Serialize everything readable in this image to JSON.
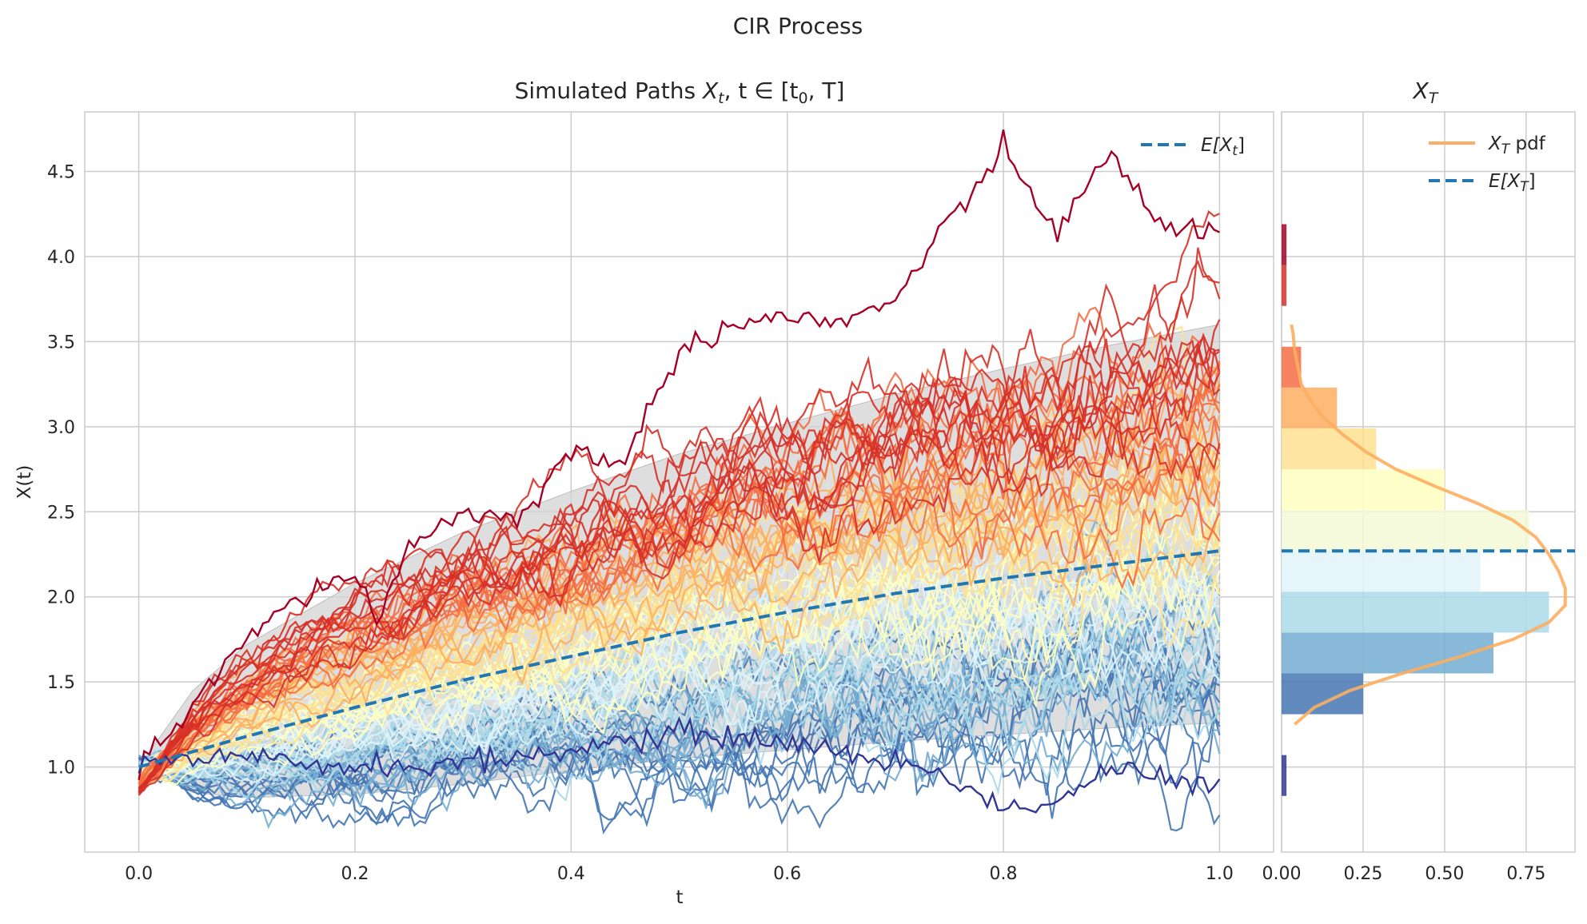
{
  "figure": {
    "suptitle": "CIR Process"
  },
  "colors": {
    "background": "#ffffff",
    "grid": "#cccccc",
    "spine": "#cccccc",
    "band": "#d3d3d3",
    "mean_line": "#1f77b4",
    "pdf_line": "#fdae61",
    "path_colormap": [
      "#313695",
      "#4575b4",
      "#74add1",
      "#abd9e9",
      "#e0f3f8",
      "#ffffbf",
      "#fee090",
      "#fdae61",
      "#f46d43",
      "#d73027",
      "#a50026"
    ]
  },
  "chart_data": [
    {
      "type": "line",
      "title_text": "Simulated Paths ",
      "title_math": "X",
      "title_math_sub": "t",
      "title_math_rest": ", t ∈ [t",
      "title_math_sub2": "0",
      "title_math_end": ", T]",
      "xlabel": "t",
      "ylabel": "X(t)",
      "xlim": [
        -0.05,
        1.05
      ],
      "ylim": [
        0.5,
        4.85
      ],
      "xticks": [
        0.0,
        0.2,
        0.4,
        0.6,
        0.8,
        1.0
      ],
      "xtick_labels": [
        "0.0",
        "0.2",
        "0.4",
        "0.6",
        "0.8",
        "1.0"
      ],
      "yticks": [
        1.0,
        1.5,
        2.0,
        2.5,
        3.0,
        3.5,
        4.0,
        4.5
      ],
      "ytick_labels": [
        "1.0",
        "1.5",
        "2.0",
        "2.5",
        "3.0",
        "3.5",
        "4.0",
        "4.5"
      ],
      "grid": true,
      "legend_position": "top-right",
      "legend": [
        {
          "label_base": "E[X",
          "label_sub": "t",
          "label_end": "]",
          "style": "dashed"
        }
      ],
      "mean_curve": {
        "x": [
          0.0,
          0.1,
          0.2,
          0.3,
          0.4,
          0.5,
          0.6,
          0.7,
          0.8,
          0.9,
          1.0
        ],
        "y": [
          1.0,
          1.18,
          1.35,
          1.51,
          1.65,
          1.79,
          1.91,
          2.02,
          2.11,
          2.19,
          2.27
        ]
      },
      "confidence_band": {
        "x": [
          0.0,
          0.05,
          0.1,
          0.2,
          0.3,
          0.4,
          0.5,
          0.6,
          0.7,
          0.8,
          0.9,
          1.0
        ],
        "lower": [
          1.0,
          0.85,
          0.82,
          0.84,
          0.9,
          0.98,
          1.05,
          1.1,
          1.15,
          1.19,
          1.23,
          1.26
        ],
        "upper": [
          1.0,
          1.45,
          1.72,
          2.08,
          2.38,
          2.62,
          2.84,
          3.02,
          3.19,
          3.34,
          3.48,
          3.6
        ]
      },
      "n_paths": 100,
      "highlighted_paths": [
        {
          "name": "",
          "color": "#a50026",
          "x": [
            0.0,
            0.05,
            0.1,
            0.15,
            0.2,
            0.22,
            0.25,
            0.3,
            0.35,
            0.4,
            0.45,
            0.5,
            0.55,
            0.6,
            0.65,
            0.7,
            0.75,
            0.8,
            0.85,
            0.9,
            0.95,
            1.0
          ],
          "y": [
            1.0,
            1.35,
            1.75,
            2.0,
            2.15,
            1.85,
            2.3,
            2.5,
            2.45,
            2.85,
            2.8,
            3.45,
            3.6,
            3.65,
            3.6,
            3.75,
            4.2,
            4.62,
            4.15,
            4.6,
            4.15,
            4.18
          ]
        },
        {
          "name": "",
          "color": "#313695",
          "x": [
            0.0,
            0.1,
            0.2,
            0.3,
            0.4,
            0.5,
            0.6,
            0.7,
            0.75,
            0.8,
            0.85,
            0.9,
            0.95,
            1.0
          ],
          "y": [
            1.0,
            1.05,
            1.0,
            1.02,
            1.1,
            1.2,
            1.15,
            1.02,
            0.95,
            0.75,
            0.8,
            1.0,
            0.92,
            0.87
          ]
        }
      ]
    },
    {
      "type": "bar",
      "orientation": "horizontal",
      "title_math": "X",
      "title_math_sub": "T",
      "xlim": [
        0.0,
        0.9
      ],
      "xticks": [
        0.0,
        0.25,
        0.5,
        0.75
      ],
      "xtick_labels": [
        "0.00",
        "0.25",
        "0.50",
        "0.75"
      ],
      "ylim": [
        0.5,
        4.85
      ],
      "grid": true,
      "legend_position": "top-right",
      "legend": [
        {
          "label_base": "X",
          "label_sub": "T",
          "label_end": " pdf",
          "style": "solid"
        },
        {
          "label_base": "E[X",
          "label_sub": "T",
          "label_end": "]",
          "style": "dashed"
        }
      ],
      "bins": [
        {
          "y0": 0.83,
          "y1": 1.07,
          "value": 0.015,
          "color": "#313695"
        },
        {
          "y0": 1.07,
          "y1": 1.31,
          "value": 0.0,
          "color": "#4575b4"
        },
        {
          "y0": 1.31,
          "y1": 1.55,
          "value": 0.25,
          "color": "#4575b4"
        },
        {
          "y0": 1.55,
          "y1": 1.79,
          "value": 0.65,
          "color": "#74add1"
        },
        {
          "y0": 1.79,
          "y1": 2.03,
          "value": 0.82,
          "color": "#abd9e9"
        },
        {
          "y0": 2.03,
          "y1": 2.27,
          "value": 0.61,
          "color": "#e0f3f8"
        },
        {
          "y0": 2.27,
          "y1": 2.51,
          "value": 0.76,
          "color": "#f3f9d6"
        },
        {
          "y0": 2.51,
          "y1": 2.75,
          "value": 0.5,
          "color": "#ffffbf"
        },
        {
          "y0": 2.75,
          "y1": 2.99,
          "value": 0.29,
          "color": "#fee090"
        },
        {
          "y0": 2.99,
          "y1": 3.23,
          "value": 0.17,
          "color": "#fdae61"
        },
        {
          "y0": 3.23,
          "y1": 3.47,
          "value": 0.06,
          "color": "#f46d43"
        },
        {
          "y0": 3.47,
          "y1": 3.71,
          "value": 0.0,
          "color": "#d73027"
        },
        {
          "y0": 3.71,
          "y1": 3.95,
          "value": 0.015,
          "color": "#d73027"
        },
        {
          "y0": 3.95,
          "y1": 4.19,
          "value": 0.015,
          "color": "#a50026"
        }
      ],
      "pdf": {
        "y": [
          1.25,
          1.35,
          1.45,
          1.55,
          1.65,
          1.75,
          1.85,
          1.95,
          2.05,
          2.15,
          2.25,
          2.35,
          2.45,
          2.55,
          2.65,
          2.75,
          2.85,
          2.95,
          3.05,
          3.15,
          3.25,
          3.35,
          3.45,
          3.55,
          3.6
        ],
        "x": [
          0.04,
          0.1,
          0.21,
          0.37,
          0.55,
          0.71,
          0.82,
          0.87,
          0.87,
          0.85,
          0.82,
          0.78,
          0.71,
          0.6,
          0.47,
          0.35,
          0.26,
          0.19,
          0.13,
          0.09,
          0.06,
          0.05,
          0.04,
          0.035,
          0.03
        ]
      },
      "mean_value": 2.27
    }
  ]
}
